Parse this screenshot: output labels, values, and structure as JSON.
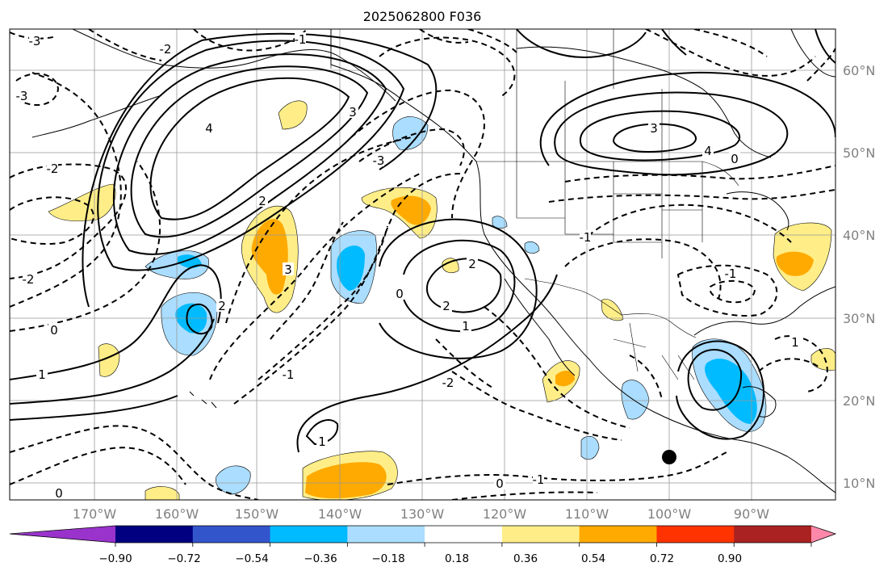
{
  "title": "2025062800 F036",
  "longitude_labels": [
    "170°W",
    "160°W",
    "150°W",
    "140°W",
    "130°W",
    "120°W",
    "110°W",
    "100°W",
    "90°W"
  ],
  "latitude_labels": [
    "60°N",
    "50°N",
    "40°N",
    "30°N",
    "20°N",
    "10°N"
  ],
  "colorbar": {
    "colors": [
      "#9933cc",
      "#000080",
      "#3355cc",
      "#00bbff",
      "#aaddff",
      "#ffffff",
      "#ffee88",
      "#ffaa00",
      "#ff3300",
      "#aa2222",
      "#ff88aa"
    ],
    "tick_labels": [
      "−0.90",
      "−0.72",
      "−0.54",
      "−0.36",
      "−0.18",
      "0.18",
      "0.36",
      "0.54",
      "0.72",
      "0.90"
    ]
  },
  "contour_labels": [
    "-3",
    "-2",
    "-1",
    "0",
    "1",
    "2",
    "3",
    "4",
    "-3",
    "-2",
    "-1",
    "0",
    "1",
    "2",
    "3",
    "4",
    "-1",
    "0",
    "1",
    "2",
    "3",
    "2",
    "-2",
    "-3",
    "0",
    "-1",
    "1",
    "-1",
    "0",
    "-2"
  ],
  "marker": {
    "description_color": "#000000"
  }
}
